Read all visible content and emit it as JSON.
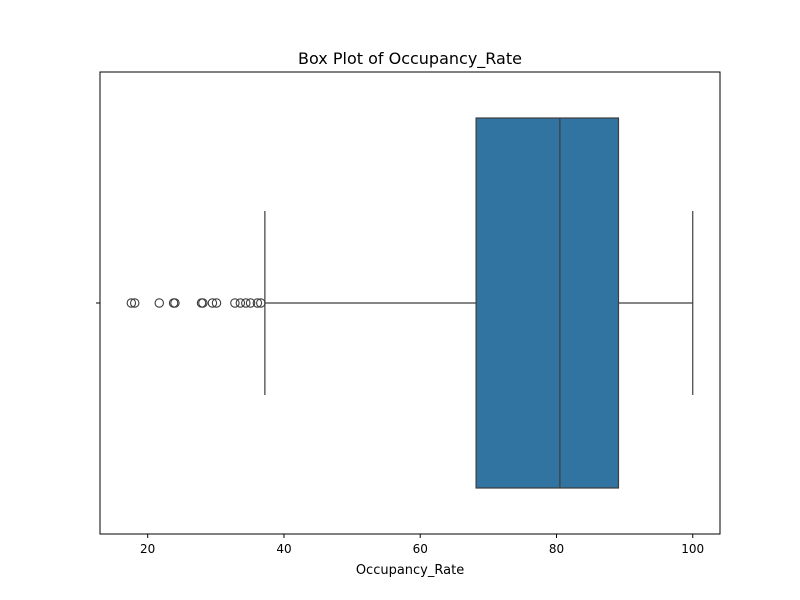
{
  "chart_data": {
    "type": "box",
    "title": "Box Plot of Occupancy_Rate",
    "xlabel": "Occupancy_Rate",
    "ylabel": "",
    "xlim": [
      13,
      104
    ],
    "xticks": [
      20,
      40,
      60,
      80,
      100
    ],
    "grid": false,
    "box": {
      "whisker_low": 37.2,
      "q1": 68.2,
      "median": 80.5,
      "q3": 89.1,
      "whisker_high": 100.0
    },
    "outliers": [
      17.6,
      18.1,
      21.7,
      23.8,
      24.0,
      27.9,
      28.1,
      29.5,
      30.1,
      32.8,
      33.6,
      34.4,
      35.1,
      36.1,
      36.6
    ],
    "colors": {
      "box_fill": "#3274a1",
      "line": "#3d3d3d",
      "axis": "#000000",
      "background": "#ffffff"
    }
  }
}
